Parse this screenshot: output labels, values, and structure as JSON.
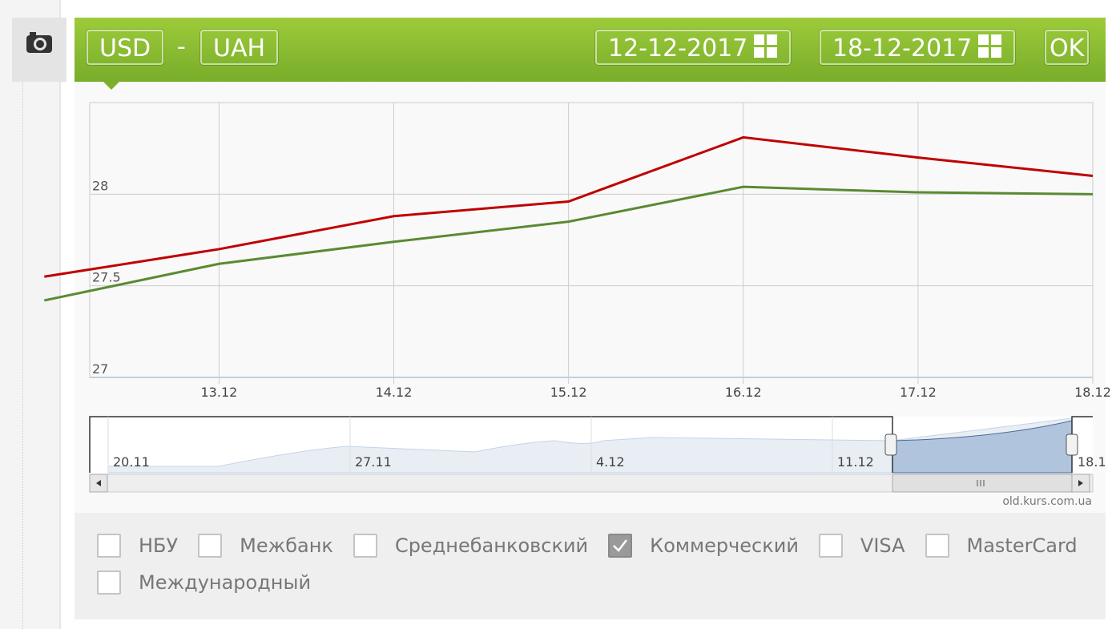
{
  "toolbar": {
    "from_currency": "USD",
    "separator": "-",
    "to_currency": "UAH",
    "date_from": "12-12-2017",
    "date_to": "18-12-2017",
    "ok": "OK"
  },
  "chart_data": {
    "type": "line",
    "categories": [
      null,
      "13.12",
      "14.12",
      "15.12",
      "16.12",
      "17.12",
      "18.12"
    ],
    "xlim": [
      0.26,
      6
    ],
    "series": [
      {
        "color": "#c00000",
        "values": [
          27.55,
          27.7,
          27.88,
          27.96,
          28.31,
          28.2,
          28.1
        ]
      },
      {
        "color": "#5a8a32",
        "values": [
          27.42,
          27.62,
          27.74,
          27.85,
          28.04,
          28.01,
          28.0
        ]
      }
    ],
    "ylim": [
      27,
      28.5
    ],
    "yticks": [
      27,
      27.5,
      28
    ],
    "grid": true
  },
  "navigator": {
    "labels": [
      "20.11",
      "27.11",
      "4.12",
      "11.12",
      "18.1"
    ]
  },
  "watermark": "old.kurs.com.ua",
  "sources": [
    {
      "label": "НБУ",
      "checked": false
    },
    {
      "label": "Межбанк",
      "checked": false
    },
    {
      "label": "Среднебанковский",
      "checked": false
    },
    {
      "label": "Коммерческий",
      "checked": true
    },
    {
      "label": "VISA",
      "checked": false
    },
    {
      "label": "MasterCard",
      "checked": false
    },
    {
      "label": "Международный",
      "checked": false
    }
  ]
}
